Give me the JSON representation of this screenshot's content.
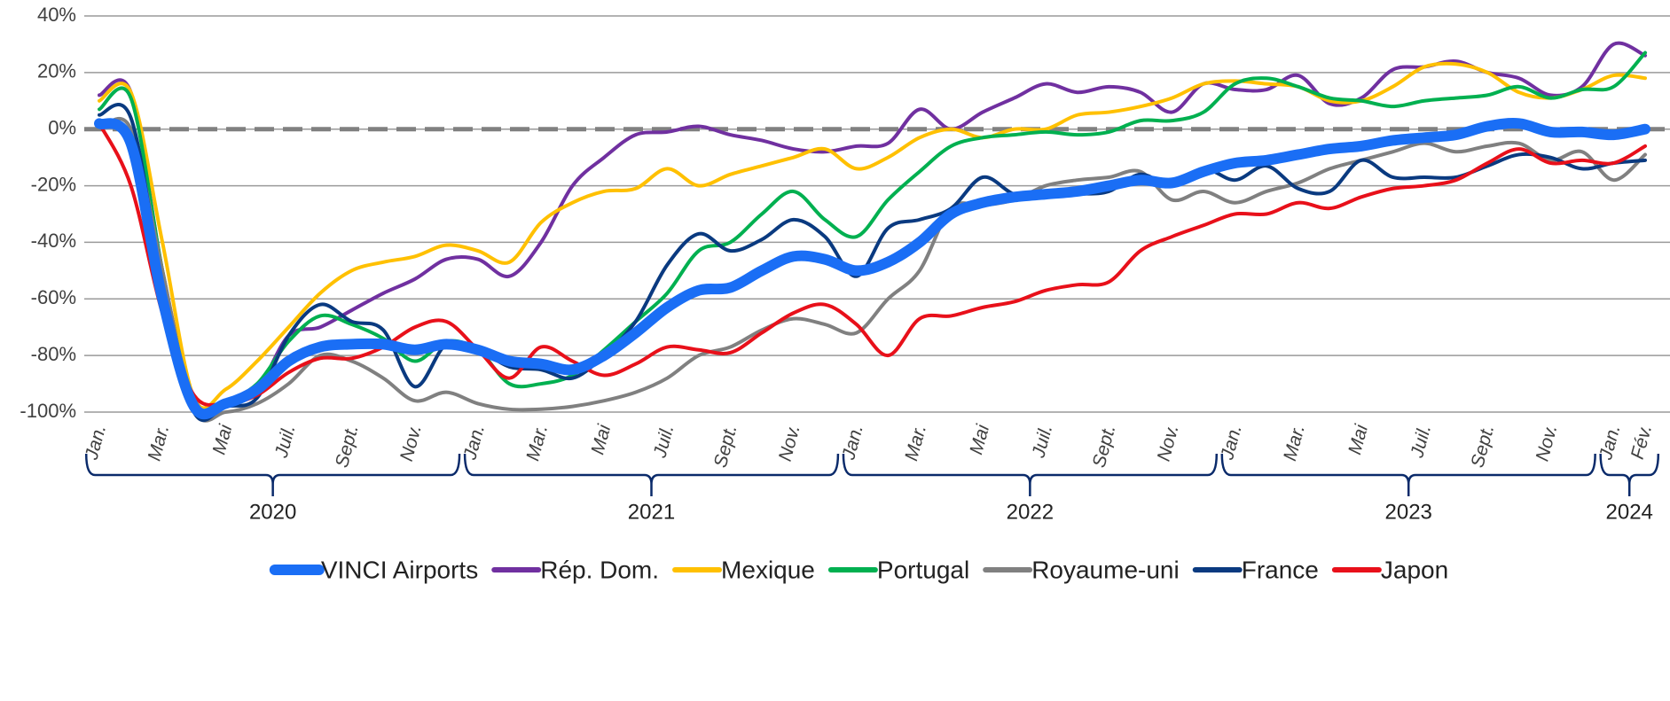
{
  "chart_data": {
    "type": "line",
    "categories": [
      "Jan.",
      null,
      "Mar.",
      null,
      "Mai",
      null,
      "Juil.",
      null,
      "Sept.",
      null,
      "Nov.",
      null,
      "Jan.",
      null,
      "Mar.",
      null,
      "Mai",
      null,
      "Juil.",
      null,
      "Sept.",
      null,
      "Nov.",
      null,
      "Jan.",
      null,
      "Mar.",
      null,
      "Mai",
      null,
      "Juil.",
      null,
      "Sept.",
      null,
      "Nov.",
      null,
      "Jan.",
      null,
      "Mar.",
      null,
      "Mai",
      null,
      "Juil.",
      null,
      "Sept.",
      null,
      "Nov.",
      null,
      "Jan.",
      "Fév."
    ],
    "groups": [
      {
        "label": "2020",
        "count": 12
      },
      {
        "label": "2021",
        "count": 12
      },
      {
        "label": "2022",
        "count": 12
      },
      {
        "label": "2023",
        "count": 12
      },
      {
        "label": "2024",
        "count": 2
      }
    ],
    "ylim": [
      -100,
      40
    ],
    "yticks": [
      {
        "value": -100,
        "label": "-100%"
      },
      {
        "value": -80,
        "label": "-80%"
      },
      {
        "value": -60,
        "label": "-60%"
      },
      {
        "value": -40,
        "label": "-40%"
      },
      {
        "value": -20,
        "label": "-20%"
      },
      {
        "value": 0,
        "label": "0%"
      },
      {
        "value": 20,
        "label": "20%"
      },
      {
        "value": 40,
        "label": "40%"
      }
    ],
    "grid": true,
    "reference_line": {
      "value": 0,
      "color": "#808080",
      "style": "dashed"
    },
    "legend": "bottom",
    "series": [
      {
        "name": "VINCI Airports",
        "color": "#1a6ef5",
        "width": 12,
        "values": [
          2,
          -5,
          -60,
          -98,
          -97,
          -92,
          -82,
          -77,
          -76,
          -76,
          -78,
          -76,
          -78,
          -82,
          -83,
          -85,
          -80,
          -72,
          -63,
          -57,
          -56,
          -50,
          -45,
          -46,
          -50,
          -47,
          -40,
          -30,
          -26,
          -24,
          -23,
          -22,
          -20,
          -18,
          -19,
          -15,
          -12,
          -11,
          -9,
          -7,
          -6,
          -4,
          -3,
          -2,
          1,
          2,
          -1,
          -1,
          -2,
          0
        ]
      },
      {
        "name": "Rép. Dom.",
        "color": "#7030a0",
        "width": 4,
        "values": [
          12,
          13,
          -50,
          -95,
          -97,
          -92,
          -73,
          -70,
          -64,
          -58,
          -53,
          -46,
          -46,
          -52,
          -40,
          -20,
          -10,
          -2,
          -1,
          1,
          -2,
          -4,
          -7,
          -8,
          -6,
          -5,
          7,
          0,
          6,
          11,
          16,
          13,
          15,
          13,
          6,
          16,
          14,
          14,
          19,
          9,
          11,
          21,
          22,
          24,
          20,
          18,
          12,
          15,
          30,
          26
        ]
      },
      {
        "name": "Mexique",
        "color": "#ffc000",
        "width": 4,
        "values": [
          10,
          13,
          -40,
          -95,
          -92,
          -82,
          -70,
          -58,
          -50,
          -47,
          -45,
          -41,
          -43,
          -47,
          -33,
          -26,
          -22,
          -21,
          -14,
          -20,
          -16,
          -13,
          -10,
          -7,
          -14,
          -10,
          -3,
          0,
          -3,
          0,
          0,
          5,
          6,
          8,
          11,
          16,
          17,
          16,
          15,
          10,
          10,
          15,
          22,
          23,
          20,
          13,
          11,
          14,
          19,
          18
        ]
      },
      {
        "name": "Portugal",
        "color": "#00b050",
        "width": 4,
        "values": [
          7,
          11,
          -50,
          -97,
          -96,
          -90,
          -75,
          -66,
          -69,
          -74,
          -82,
          -75,
          -78,
          -90,
          -90,
          -87,
          -78,
          -68,
          -58,
          -43,
          -40,
          -30,
          -22,
          -32,
          -38,
          -25,
          -15,
          -6,
          -3,
          -2,
          -1,
          -2,
          -1,
          3,
          3,
          6,
          16,
          18,
          15,
          11,
          10,
          8,
          10,
          11,
          12,
          15,
          11,
          14,
          15,
          27
        ]
      },
      {
        "name": "Royaume-uni",
        "color": "#808080",
        "width": 4,
        "values": [
          0,
          0,
          -50,
          -99,
          -100,
          -97,
          -90,
          -80,
          -82,
          -88,
          -96,
          -93,
          -97,
          -99,
          -99,
          -98,
          -96,
          -93,
          -88,
          -80,
          -77,
          -71,
          -67,
          -69,
          -72,
          -60,
          -50,
          -28,
          -27,
          -25,
          -20,
          -18,
          -17,
          -15,
          -25,
          -22,
          -26,
          -22,
          -19,
          -14,
          -11,
          -8,
          -5,
          -8,
          -6,
          -5,
          -11,
          -8,
          -18,
          -9
        ]
      },
      {
        "name": "France",
        "color": "#0a3a80",
        "width": 4,
        "values": [
          5,
          4,
          -55,
          -100,
          -98,
          -95,
          -73,
          -62,
          -68,
          -71,
          -91,
          -76,
          -78,
          -84,
          -85,
          -88,
          -80,
          -68,
          -48,
          -37,
          -43,
          -39,
          -32,
          -38,
          -52,
          -35,
          -32,
          -28,
          -17,
          -23,
          -24,
          -23,
          -22,
          -16,
          -20,
          -14,
          -18,
          -13,
          -21,
          -22,
          -11,
          -17,
          -17,
          -17,
          -13,
          -9,
          -10,
          -14,
          -12,
          -11
        ]
      },
      {
        "name": "Japon",
        "color": "#e8101a",
        "width": 4,
        "values": [
          2,
          -20,
          -65,
          -94,
          -97,
          -94,
          -86,
          -81,
          -81,
          -77,
          -70,
          -68,
          -78,
          -88,
          -77,
          -82,
          -87,
          -83,
          -77,
          -78,
          -79,
          -72,
          -65,
          -62,
          -69,
          -80,
          -67,
          -66,
          -63,
          -61,
          -57,
          -55,
          -54,
          -43,
          -38,
          -34,
          -30,
          -30,
          -26,
          -28,
          -24,
          -21,
          -20,
          -18,
          -12,
          -7,
          -12,
          -11,
          -12,
          -6
        ]
      }
    ]
  }
}
